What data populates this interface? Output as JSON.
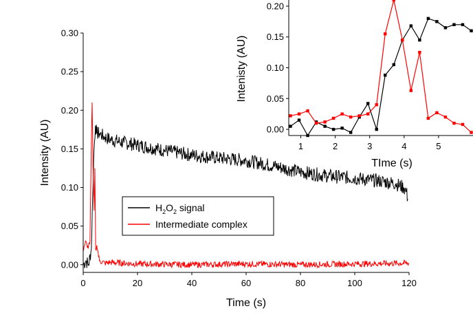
{
  "chart_data": [
    {
      "type": "line",
      "title": "",
      "xlabel": "Time (s)",
      "ylabel": "Intensity (AU)",
      "xlim": [
        0,
        120
      ],
      "ylim": [
        -0.01,
        0.3
      ],
      "x_ticks": [
        "0",
        "20",
        "40",
        "60",
        "80",
        "100",
        "120"
      ],
      "y_ticks": [
        "0.00",
        "0.05",
        "0.10",
        "0.15",
        "0.20",
        "0.25",
        "0.30"
      ],
      "legend_position": "lower-left",
      "grid": false,
      "series": [
        {
          "name": "H2O2 signal",
          "legend_parts": {
            "base": "H",
            "sub1": "2",
            "mid": "O",
            "sub2": "2",
            "rest": " signal"
          },
          "color": "#000000",
          "x": [
            0,
            1,
            2,
            3,
            3.5,
            4,
            4.5,
            5,
            6,
            8,
            10,
            15,
            20,
            30,
            40,
            50,
            60,
            70,
            80,
            90,
            100,
            110,
            115,
            118,
            119,
            119.5
          ],
          "y": [
            0.0,
            0.005,
            0.0,
            0.02,
            0.09,
            0.15,
            0.18,
            0.17,
            0.17,
            0.165,
            0.162,
            0.158,
            0.155,
            0.148,
            0.142,
            0.138,
            0.135,
            0.128,
            0.12,
            0.115,
            0.112,
            0.108,
            0.105,
            0.1,
            0.095,
            0.085
          ]
        },
        {
          "name": "Intermediate complex",
          "color": "#ff0000",
          "x": [
            0,
            0.5,
            1,
            1.5,
            2,
            2.5,
            3,
            3.3,
            3.6,
            4,
            4.3,
            4.6,
            5,
            5.5,
            6,
            8,
            10,
            20,
            40,
            60,
            80,
            100,
            120
          ],
          "y": [
            0.02,
            0.025,
            0.03,
            0.022,
            0.025,
            0.03,
            0.155,
            0.21,
            0.13,
            0.07,
            0.125,
            0.02,
            0.025,
            0.015,
            0.005,
            0.002,
            0.003,
            0.001,
            0.0,
            0.001,
            0.0,
            0.001,
            0.002
          ]
        }
      ]
    },
    {
      "type": "line",
      "title": "",
      "xlabel": "TIme (s)",
      "ylabel": "Intenisty (AU)",
      "xlim": [
        0.65,
        6.0
      ],
      "ylim": [
        -0.01,
        0.21
      ],
      "x_ticks": [
        "1",
        "2",
        "3",
        "4",
        "5"
      ],
      "y_ticks": [
        "0.00",
        "0.05",
        "0.10",
        "0.15",
        "0.20"
      ],
      "grid": false,
      "series": [
        {
          "name": "H2O2 signal",
          "color": "#000000",
          "x": [
            0.7,
            0.95,
            1.2,
            1.45,
            1.7,
            1.95,
            2.2,
            2.45,
            2.7,
            2.95,
            3.2,
            3.45,
            3.7,
            3.95,
            4.2,
            4.45,
            4.7,
            4.95,
            5.2,
            5.45,
            5.7,
            5.95
          ],
          "y": [
            0.005,
            0.015,
            -0.01,
            0.012,
            0.005,
            0.0,
            0.002,
            -0.005,
            0.02,
            0.042,
            0.0,
            0.088,
            0.105,
            0.145,
            0.168,
            0.145,
            0.18,
            0.175,
            0.165,
            0.17,
            0.17,
            0.16
          ]
        },
        {
          "name": "Intermediate complex",
          "color": "#ff0000",
          "x": [
            0.7,
            0.95,
            1.2,
            1.45,
            1.7,
            1.95,
            2.2,
            2.45,
            2.7,
            2.95,
            3.2,
            3.45,
            3.7,
            3.95,
            4.2,
            4.45,
            4.7,
            4.95,
            5.2,
            5.45,
            5.7,
            5.95
          ],
          "y": [
            0.022,
            0.025,
            0.03,
            0.01,
            0.012,
            0.018,
            0.025,
            0.02,
            0.022,
            0.025,
            0.04,
            0.155,
            0.21,
            0.145,
            0.063,
            0.125,
            0.018,
            0.027,
            0.02,
            0.01,
            0.008,
            -0.005
          ]
        }
      ]
    }
  ]
}
